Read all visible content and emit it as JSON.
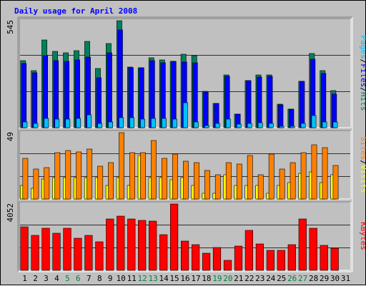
{
  "page": {
    "title": "Daily usage for April 2008"
  },
  "chart_data": {
    "type": "bar",
    "title": "Daily usage for April 2008",
    "categories": [
      "1",
      "2",
      "3",
      "4",
      "5",
      "6",
      "7",
      "8",
      "9",
      "10",
      "11",
      "12",
      "13",
      "14",
      "15",
      "16",
      "17",
      "18",
      "19",
      "20",
      "21",
      "22",
      "23",
      "24",
      "25",
      "26",
      "27",
      "28",
      "29",
      "30",
      "31"
    ],
    "weekend_days": [
      "5",
      "6",
      "12",
      "13",
      "19",
      "20",
      "26",
      "27"
    ],
    "colors": {
      "hits": "#00805c",
      "files": "#0000ff",
      "pages": "#00c0ff",
      "visits": "#ffff00",
      "sites": "#ff8000",
      "kbytes": "#ff0000",
      "weekend_label": "#008040",
      "weekday_label": "#000000",
      "title": "#0000ff",
      "background": "#c0c0c0"
    },
    "panels": [
      {
        "id": "hits-files-pages",
        "ymax_label": "545",
        "ymax": 545,
        "legend": [
          {
            "label": "Pages",
            "color": "#00c0ff"
          },
          {
            "label": "Files",
            "color": "#0000ff"
          },
          {
            "label": "Hits",
            "color": "#00805c"
          }
        ],
        "legend_separator": "/",
        "series": [
          {
            "name": "Hits",
            "values": [
              340,
              290,
              448,
              390,
              380,
              392,
              440,
              300,
              428,
              545,
              310,
              305,
              355,
              345,
              338,
              375,
              368,
              185,
              125,
              268,
              68,
              240,
              268,
              268,
              120,
              95,
              235,
              378,
              290,
              190,
              0
            ]
          },
          {
            "name": "Files",
            "values": [
              328,
              280,
              368,
              340,
              338,
              345,
              360,
              255,
              380,
              498,
              305,
              305,
              340,
              330,
              338,
              335,
              330,
              182,
              122,
              260,
              68,
              240,
              258,
              262,
              118,
              95,
              235,
              350,
              275,
              170,
              0
            ]
          },
          {
            "name": "Pages",
            "values": [
              28,
              22,
              48,
              42,
              44,
              48,
              65,
              22,
              28,
              50,
              50,
              42,
              48,
              48,
              45,
              128,
              28,
              12,
              20,
              45,
              18,
              22,
              25,
              20,
              8,
              8,
              20,
              62,
              30,
              28,
              0
            ]
          }
        ]
      },
      {
        "id": "sites-visits",
        "ymax_label": "49",
        "ymax": 49,
        "legend": [
          {
            "label": "Sites",
            "color": "#ff8000"
          },
          {
            "label": "Visits",
            "color": "#ffff00"
          }
        ],
        "legend_separator": "/",
        "series": [
          {
            "name": "Sites",
            "values": [
              30,
              22,
              23,
              34,
              36,
              35,
              37,
              24,
              27,
              49,
              34,
              34,
              43,
              30,
              33,
              28,
              27,
              21,
              18,
              27,
              26,
              32,
              18,
              33,
              22,
              27,
              34,
              40,
              38,
              25,
              0
            ]
          },
          {
            "name": "Visits",
            "values": [
              10,
              8,
              15,
              16,
              16,
              16,
              16,
              16,
              10,
              16,
              10,
              32,
              16,
              16,
              14,
              16,
              10,
              4,
              4,
              18,
              10,
              10,
              10,
              4,
              10,
              12,
              19,
              20,
              12,
              18,
              0
            ]
          }
        ]
      },
      {
        "id": "kbytes",
        "ymax_label": "4052",
        "ymax": 4052,
        "legend": [
          {
            "label": "KBytes",
            "color": "#ff0000"
          }
        ],
        "legend_separator": "",
        "series": [
          {
            "name": "KBytes",
            "values": [
              2650,
              2150,
              2550,
              2250,
              2550,
              1960,
              2130,
              1750,
              3150,
              3330,
              3130,
              3050,
              3000,
              2180,
              4052,
              1800,
              1580,
              1030,
              1400,
              620,
              1500,
              2420,
              1630,
              1200,
              1220,
              1560,
              3150,
              2560,
              1520,
              1350,
              0
            ]
          }
        ]
      }
    ]
  }
}
